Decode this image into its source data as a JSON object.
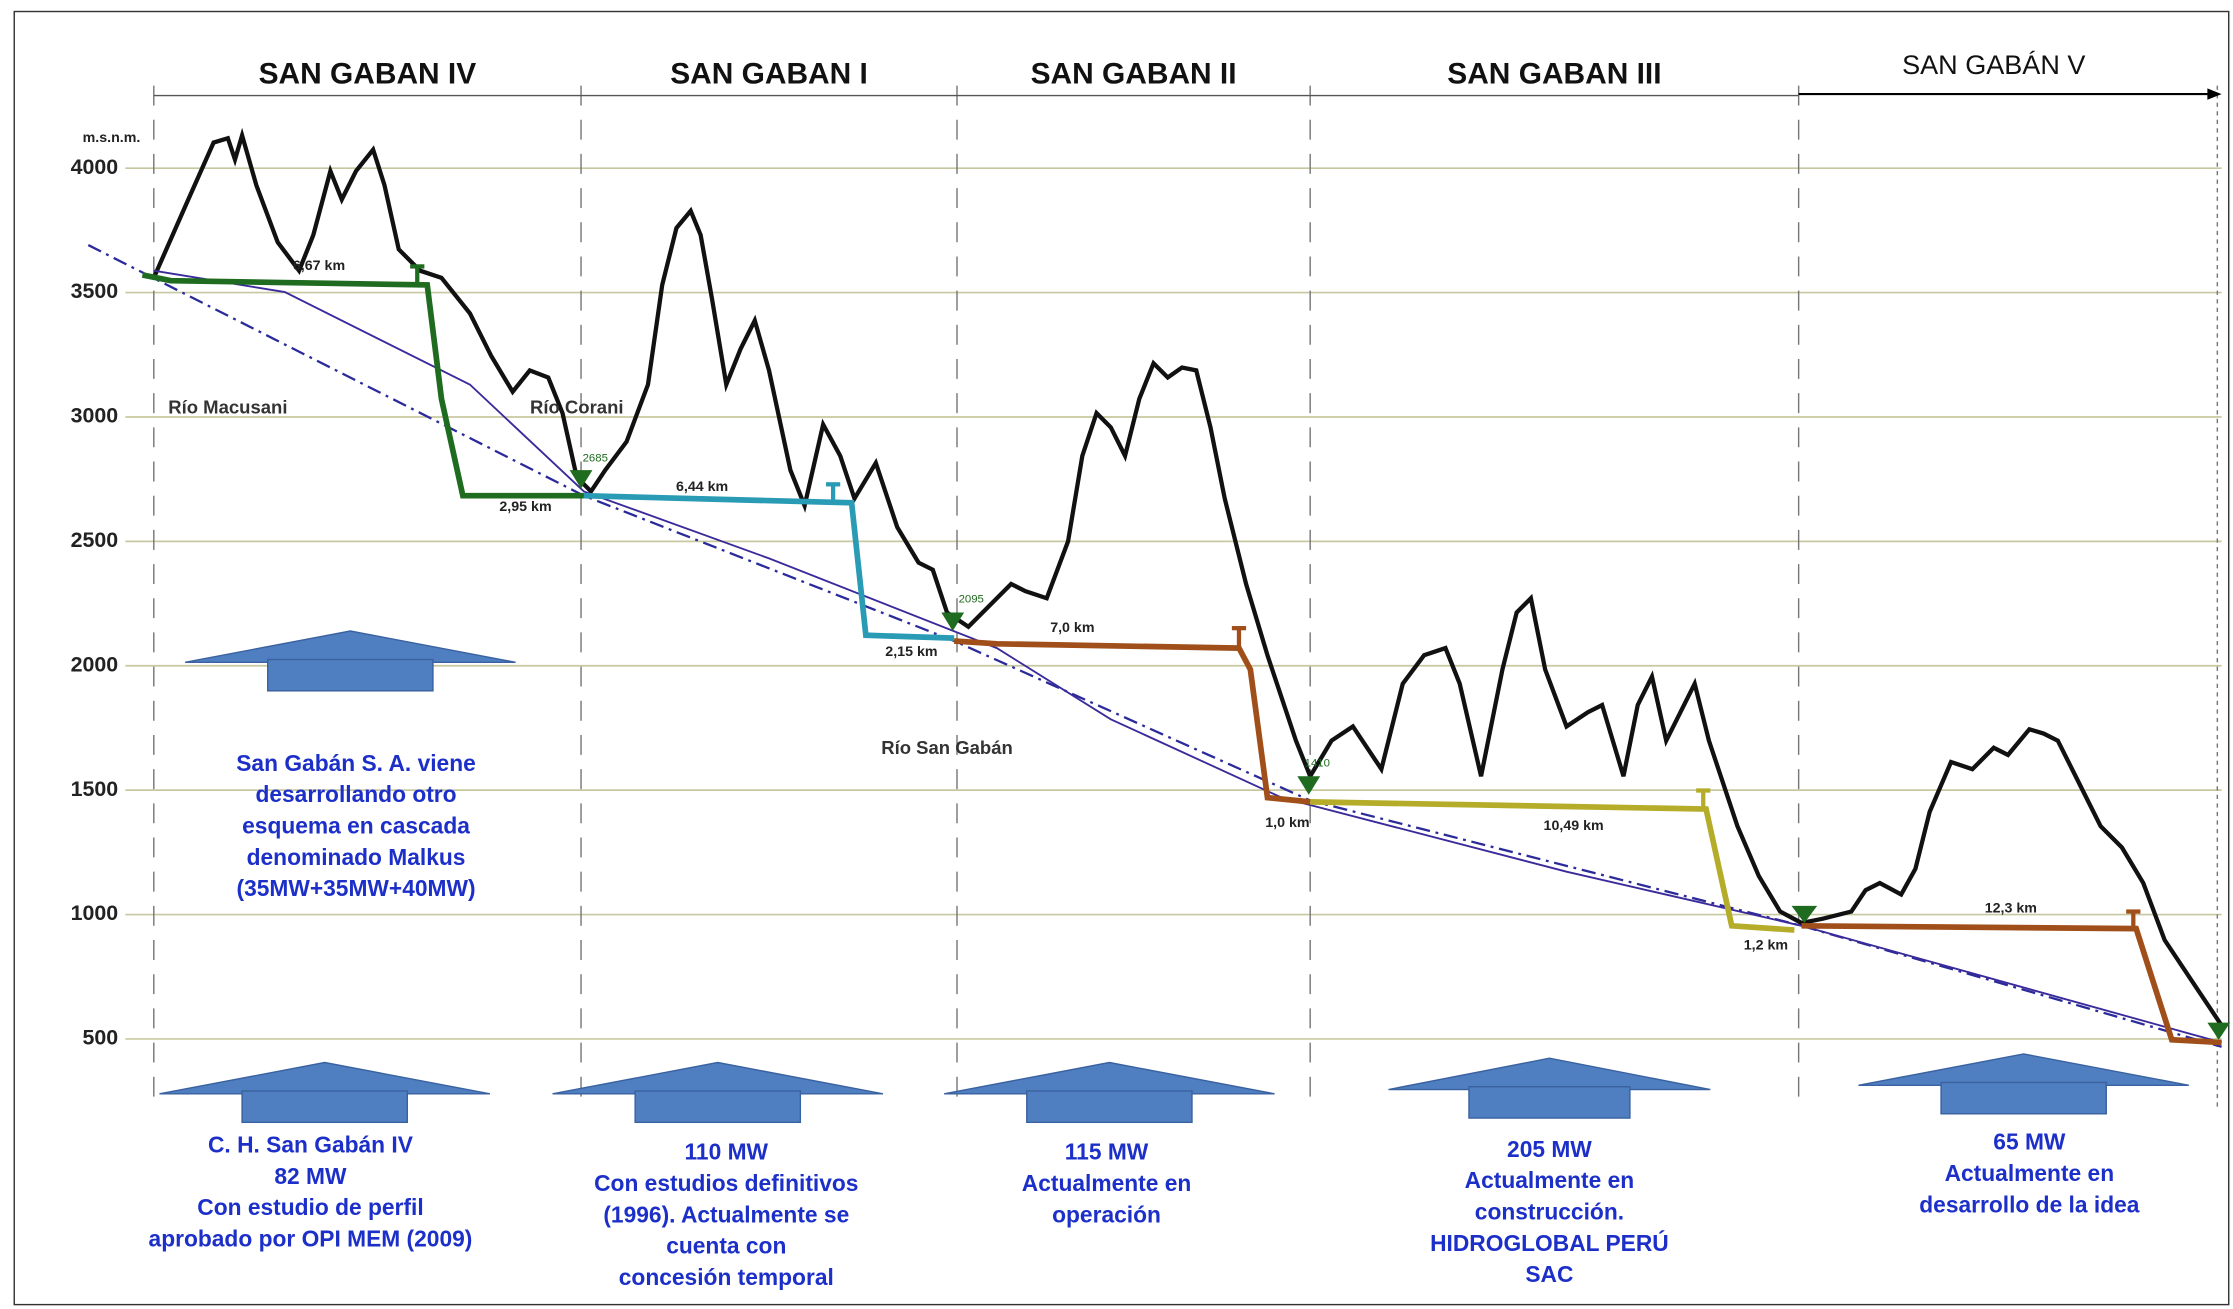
{
  "y_axis": {
    "unit": "m.s.n.m.",
    "ticks": [
      4000,
      3500,
      3000,
      2500,
      2000,
      1500,
      1000,
      500
    ]
  },
  "sections": [
    "SAN GABAN IV",
    "SAN GABAN I",
    "SAN GABAN II",
    "SAN GABAN III",
    "SAN GABÁN V"
  ],
  "rivers": [
    "Río Macusani",
    "Río Corani",
    "Río San Gabán"
  ],
  "distances": [
    "6,67 km",
    "2,95 km",
    "6,44 km",
    "2,15 km",
    "7,0 km",
    "1,0 km",
    "10,49 km",
    "1,2 km",
    "12,3 km"
  ],
  "elevations": [
    "2685",
    "2095",
    "1410"
  ],
  "note": [
    "San Gabán S. A. viene",
    "desarrollando otro",
    "esquema en cascada",
    "denominado Malkus",
    "(35MW+35MW+40MW)"
  ],
  "plants": [
    [
      "C. H. San Gabán IV",
      "82 MW",
      "Con estudio de perfil",
      "aprobado por OPI MEM (2009)"
    ],
    [
      "110 MW",
      "Con estudios definitivos",
      "(1996). Actualmente  se",
      "cuenta con",
      "concesión temporal"
    ],
    [
      "115 MW",
      "Actualmente en",
      "operación"
    ],
    [
      "205 MW",
      "Actualmente en",
      "construcción.",
      "HIDROGLOBAL PERÚ",
      "SAC"
    ],
    [
      "65 MW",
      "Actualmente en",
      "desarrollo de la idea"
    ]
  ]
}
